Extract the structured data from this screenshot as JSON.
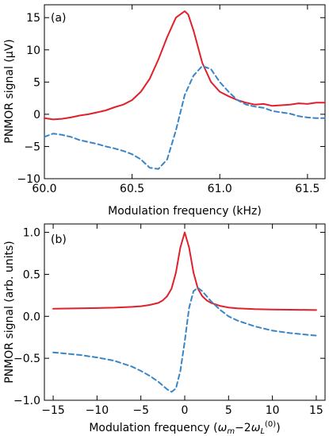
{
  "chart_data": [
    {
      "type": "line",
      "panel_label": "(a)",
      "xlabel": "Modulation frequency (kHz)",
      "ylabel": "PNMOR signal (μV)",
      "xlim": [
        60.0,
        61.6
      ],
      "ylim": [
        -10,
        17
      ],
      "xticks": [
        60.0,
        60.5,
        61.0,
        61.5
      ],
      "xtick_labels": [
        "60.0",
        "60.5",
        "61.0",
        "61.5"
      ],
      "yticks": [
        -10,
        -5,
        0,
        5,
        10,
        15
      ],
      "ytick_labels": [
        "−10",
        "−5",
        "0",
        "5",
        "10",
        "15"
      ],
      "grid": false,
      "series": [
        {
          "color": "#e0202a",
          "style": "solid",
          "x": [
            60.0,
            60.05,
            60.1,
            60.15,
            60.2,
            60.25,
            60.3,
            60.35,
            60.4,
            60.45,
            60.5,
            60.55,
            60.6,
            60.65,
            60.7,
            60.75,
            60.8,
            60.82,
            60.85,
            60.9,
            60.95,
            61.0,
            61.05,
            61.1,
            61.15,
            61.2,
            61.25,
            61.3,
            61.35,
            61.4,
            61.45,
            61.5,
            61.55,
            61.6
          ],
          "y": [
            -0.6,
            -0.8,
            -0.7,
            -0.5,
            -0.2,
            0.0,
            0.3,
            0.6,
            1.1,
            1.5,
            2.2,
            3.5,
            5.5,
            8.5,
            12.0,
            15.0,
            16.0,
            15.5,
            13.0,
            8.0,
            5.0,
            3.5,
            2.8,
            2.2,
            1.8,
            1.5,
            1.6,
            1.3,
            1.4,
            1.5,
            1.7,
            1.6,
            1.8,
            1.8
          ]
        },
        {
          "color": "#3a85c5",
          "style": "dashed",
          "x": [
            60.0,
            60.05,
            60.1,
            60.15,
            60.2,
            60.25,
            60.3,
            60.35,
            60.4,
            60.45,
            60.5,
            60.55,
            60.6,
            60.65,
            60.7,
            60.75,
            60.8,
            60.85,
            60.9,
            60.95,
            61.0,
            61.05,
            61.1,
            61.15,
            61.2,
            61.25,
            61.3,
            61.35,
            61.4,
            61.45,
            61.5,
            61.55,
            61.6
          ],
          "y": [
            -3.5,
            -3.0,
            -3.2,
            -3.5,
            -4.0,
            -4.3,
            -4.6,
            -5.0,
            -5.3,
            -5.7,
            -6.2,
            -7.0,
            -8.3,
            -8.5,
            -7.0,
            -2.5,
            3.0,
            6.0,
            7.5,
            7.0,
            5.0,
            3.5,
            2.2,
            1.5,
            1.2,
            1.0,
            0.5,
            0.3,
            0.1,
            -0.3,
            -0.5,
            -0.6,
            -0.6
          ]
        }
      ]
    },
    {
      "type": "line",
      "panel_label": "(b)",
      "xlabel": "Modulation frequency (ω_m−2ω_L^(0))",
      "ylabel": "PNMOR signal (arb. units)",
      "xlim": [
        -16,
        16
      ],
      "ylim": [
        -1.0,
        1.1
      ],
      "xticks": [
        -15,
        -10,
        -5,
        0,
        5,
        10,
        15
      ],
      "xtick_labels": [
        "−15",
        "−10",
        "−5",
        "0",
        "5",
        "10",
        "15"
      ],
      "yticks": [
        -1.0,
        -0.5,
        0.0,
        0.5,
        1.0
      ],
      "ytick_labels": [
        "−1.0",
        "−0.5",
        "0.0",
        "0.5",
        "1.0"
      ],
      "grid": false,
      "series": [
        {
          "color": "#e0202a",
          "style": "solid",
          "x": [
            -15,
            -12,
            -10,
            -8,
            -6,
            -5,
            -4,
            -3,
            -2.5,
            -2,
            -1.5,
            -1,
            -0.5,
            0,
            0.5,
            1,
            1.5,
            2,
            2.5,
            3,
            4,
            5,
            6,
            8,
            10,
            12,
            15
          ],
          "y": [
            0.09,
            0.095,
            0.098,
            0.103,
            0.112,
            0.12,
            0.135,
            0.16,
            0.19,
            0.24,
            0.33,
            0.52,
            0.82,
            1.0,
            0.82,
            0.52,
            0.33,
            0.24,
            0.19,
            0.16,
            0.125,
            0.105,
            0.095,
            0.085,
            0.08,
            0.078,
            0.075
          ]
        },
        {
          "color": "#3a85c5",
          "style": "dashed",
          "x": [
            -15,
            -12,
            -10,
            -8,
            -6,
            -5,
            -4,
            -3,
            -2,
            -1.5,
            -1,
            -0.5,
            0,
            0.5,
            1,
            1.5,
            2,
            3,
            4,
            5,
            6,
            8,
            10,
            12,
            15
          ],
          "y": [
            -0.43,
            -0.46,
            -0.49,
            -0.53,
            -0.6,
            -0.65,
            -0.71,
            -0.78,
            -0.87,
            -0.9,
            -0.86,
            -0.65,
            -0.3,
            0.1,
            0.3,
            0.34,
            0.3,
            0.18,
            0.08,
            0.0,
            -0.05,
            -0.12,
            -0.17,
            -0.2,
            -0.23
          ]
        }
      ]
    }
  ]
}
